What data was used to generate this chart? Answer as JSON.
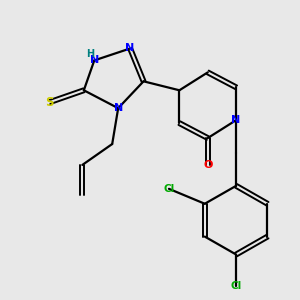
{
  "bg_color": "#e8e8e8",
  "atom_colors": {
    "N": "#0000ff",
    "S": "#cccc00",
    "O": "#ff0000",
    "C": "#000000",
    "Cl": "#00aa00",
    "H": "#008080"
  },
  "figsize": [
    3.0,
    3.0
  ],
  "dpi": 100
}
